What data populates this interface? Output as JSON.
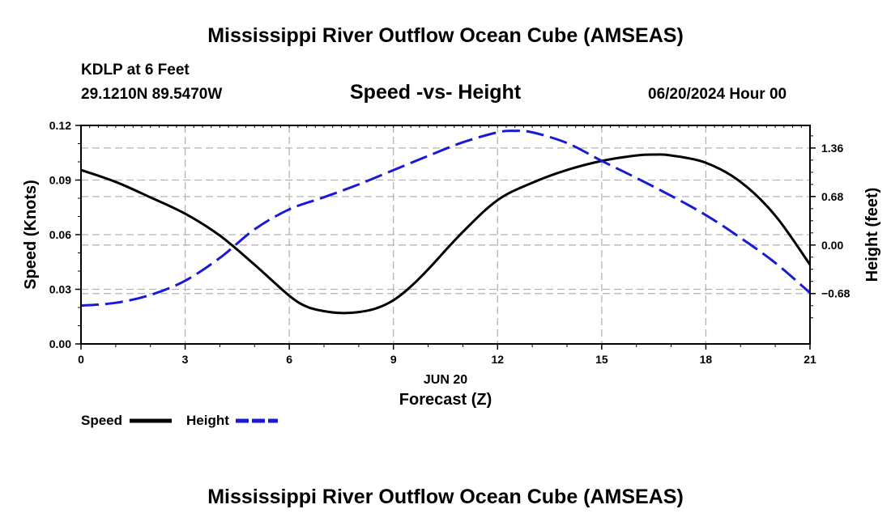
{
  "header": {
    "title": "Mississippi River Outflow Ocean Cube (AMSEAS)",
    "station": "KDLP at 6 Feet",
    "coords": "29.1210N  89.5470W",
    "subtitle": "Speed -vs- Height",
    "datetime": "06/20/2024 Hour 00"
  },
  "footer": {
    "title": "Mississippi River Outflow Ocean Cube (AMSEAS)"
  },
  "colors": {
    "speed": "#000000",
    "height": "#1a1ad6",
    "grid": "#b4b4b4"
  },
  "chart_data": {
    "type": "line",
    "title": "Speed -vs- Height",
    "xlabel": "Forecast (Z)",
    "xlabel_date": "JUN 20",
    "ylabel_left": "Speed (Knots)",
    "ylabel_right": "Height (feet)",
    "xlim": [
      0,
      21
    ],
    "ylim_left": [
      0,
      0.12
    ],
    "ylim_right": [
      -1.3862,
      1.6765
    ],
    "x_ticks": [
      0,
      3,
      6,
      9,
      12,
      15,
      18,
      21
    ],
    "x_tick_labels": [
      "0",
      "3",
      "6",
      "9",
      "12",
      "15",
      "18",
      "21"
    ],
    "y_left_ticks": [
      0.0,
      0.03,
      0.06,
      0.09,
      0.12
    ],
    "y_left_tick_labels": [
      "0.00",
      "0.03",
      "0.06",
      "0.09",
      "0.12"
    ],
    "y_right_ticks": [
      -0.68,
      0.0,
      0.68,
      1.36
    ],
    "y_right_tick_labels": [
      "−0.68",
      "0.00",
      "0.68",
      "1.36"
    ],
    "grid": true,
    "legend_position": "bottom-left",
    "series": [
      {
        "name": "Speed",
        "axis": "left",
        "style": "solid",
        "x": [
          0,
          1,
          2,
          3,
          4,
          5,
          6,
          6.5,
          7,
          7.5,
          8,
          8.5,
          9,
          9.5,
          10,
          11,
          12,
          13,
          14,
          15,
          16,
          16.5,
          17,
          18,
          19,
          20,
          21
        ],
        "values": [
          0.0955,
          0.089,
          0.0805,
          0.0715,
          0.0595,
          0.0435,
          0.0265,
          0.0205,
          0.018,
          0.017,
          0.0175,
          0.0195,
          0.024,
          0.0315,
          0.041,
          0.0615,
          0.079,
          0.0885,
          0.0955,
          0.1005,
          0.1035,
          0.104,
          0.1035,
          0.0995,
          0.089,
          0.0705,
          0.0435
        ]
      },
      {
        "name": "Height",
        "axis": "right",
        "style": "dashed",
        "x": [
          0,
          1,
          2,
          3,
          4,
          5,
          6,
          7,
          8,
          9,
          10,
          11,
          12,
          12.5,
          13,
          14,
          15,
          16,
          17,
          18,
          19,
          20,
          21
        ],
        "values": [
          -0.85,
          -0.81,
          -0.7,
          -0.5,
          -0.18,
          0.22,
          0.5,
          0.67,
          0.85,
          1.05,
          1.25,
          1.44,
          1.58,
          1.6,
          1.58,
          1.43,
          1.18,
          0.94,
          0.69,
          0.42,
          0.1,
          -0.25,
          -0.67
        ]
      }
    ]
  }
}
